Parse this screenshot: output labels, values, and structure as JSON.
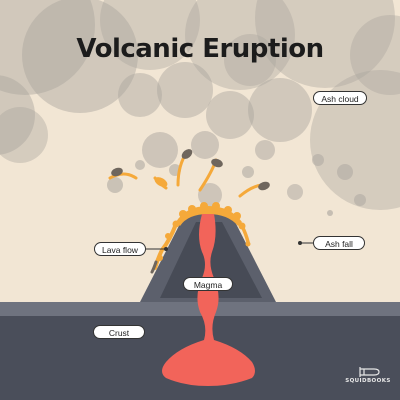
{
  "diagram": {
    "title": "Volcanic Eruption",
    "labels": {
      "ash_cloud": "Ash cloud",
      "ash_fall": "Ash fall",
      "lava_flow": "Lava flow",
      "magma": "Magma",
      "crust": "Crust"
    },
    "brand": "SQUIDBOOKS",
    "brand_icon": "squid-icon",
    "colors": {
      "sky": "#f2e6d4",
      "ash": "#a9a49d",
      "volcano_outer": "#5c606c",
      "volcano_inner": "#474b56",
      "crust_top": "#6f737f",
      "crust": "#4a4e5a",
      "magma": "#f2645a",
      "lava": "#f5a93a",
      "lava_dark": "#e0892a",
      "bomb": "#6f665d",
      "title": "#1c1c1c"
    }
  }
}
